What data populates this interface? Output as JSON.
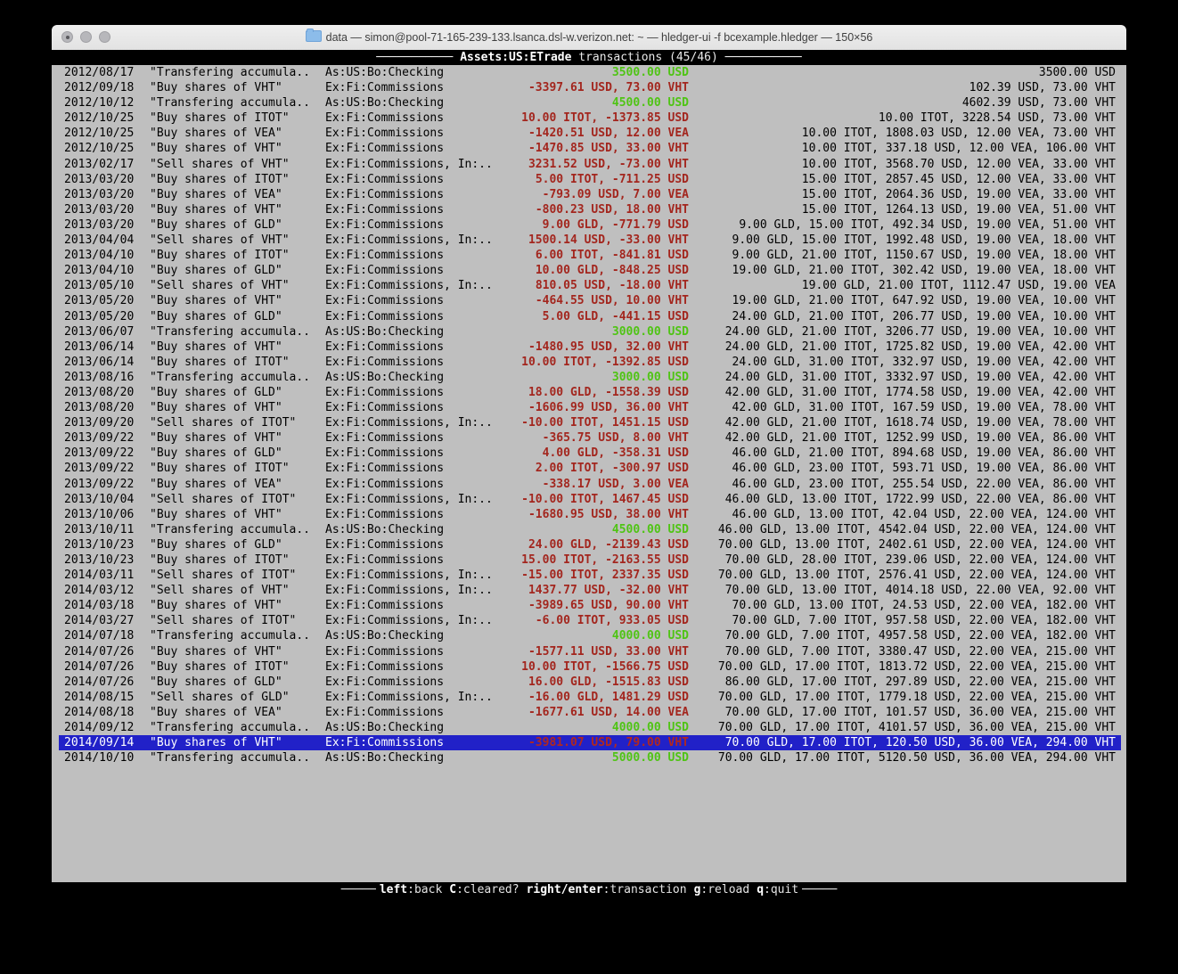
{
  "window": {
    "title": "data — simon@pool-71-165-239-133.lsanca.dsl-w.verizon.net: ~ — hledger-ui -f bcexample.hledger — 150×56"
  },
  "header": {
    "dashes_left": "───────────",
    "account": "Assets:US:ETrade",
    "label": " transactions (45/46) ",
    "dashes_right": "───────────"
  },
  "footer": {
    "dashes_left": "─────",
    "dashes_right": "─────",
    "keys": [
      {
        "key": "left",
        "desc": ":back"
      },
      {
        "key": "C",
        "desc": ":cleared?"
      },
      {
        "key": "right/enter",
        "desc": ":transaction"
      },
      {
        "key": "g",
        "desc": ":reload"
      },
      {
        "key": "q",
        "desc": ":quit"
      }
    ]
  },
  "colors": {
    "change_positive": "#4fc414",
    "change_negative": "#a3261e",
    "selection_bg": "#2121c8",
    "terminal_bg": "#bfbfbf",
    "bar_bg": "#000000"
  },
  "transactions": [
    {
      "date": "2012/08/17",
      "desc": "\"Transfering accumula..",
      "account": "As:US:Bo:Checking",
      "change": "3500.00 USD",
      "kind": "green",
      "balance": "3500.00 USD",
      "selected": false
    },
    {
      "date": "2012/09/18",
      "desc": "\"Buy shares of VHT\"",
      "account": "Ex:Fi:Commissions",
      "change": "-3397.61 USD, 73.00 VHT",
      "kind": "red",
      "balance": "102.39 USD, 73.00 VHT",
      "selected": false
    },
    {
      "date": "2012/10/12",
      "desc": "\"Transfering accumula..",
      "account": "As:US:Bo:Checking",
      "change": "4500.00 USD",
      "kind": "green",
      "balance": "4602.39 USD, 73.00 VHT",
      "selected": false
    },
    {
      "date": "2012/10/25",
      "desc": "\"Buy shares of ITOT\"",
      "account": "Ex:Fi:Commissions",
      "change": "10.00 ITOT, -1373.85 USD",
      "kind": "red",
      "balance": "10.00 ITOT, 3228.54 USD, 73.00 VHT",
      "selected": false
    },
    {
      "date": "2012/10/25",
      "desc": "\"Buy shares of VEA\"",
      "account": "Ex:Fi:Commissions",
      "change": "-1420.51 USD, 12.00 VEA",
      "kind": "red",
      "balance": "10.00 ITOT, 1808.03 USD, 12.00 VEA, 73.00 VHT",
      "selected": false
    },
    {
      "date": "2012/10/25",
      "desc": "\"Buy shares of VHT\"",
      "account": "Ex:Fi:Commissions",
      "change": "-1470.85 USD, 33.00 VHT",
      "kind": "red",
      "balance": "10.00 ITOT, 337.18 USD, 12.00 VEA, 106.00 VHT",
      "selected": false
    },
    {
      "date": "2013/02/17",
      "desc": "\"Sell shares of VHT\"",
      "account": "Ex:Fi:Commissions, In:..",
      "change": "3231.52 USD, -73.00 VHT",
      "kind": "red",
      "balance": "10.00 ITOT, 3568.70 USD, 12.00 VEA, 33.00 VHT",
      "selected": false
    },
    {
      "date": "2013/03/20",
      "desc": "\"Buy shares of ITOT\"",
      "account": "Ex:Fi:Commissions",
      "change": "5.00 ITOT, -711.25 USD",
      "kind": "red",
      "balance": "15.00 ITOT, 2857.45 USD, 12.00 VEA, 33.00 VHT",
      "selected": false
    },
    {
      "date": "2013/03/20",
      "desc": "\"Buy shares of VEA\"",
      "account": "Ex:Fi:Commissions",
      "change": "-793.09 USD, 7.00 VEA",
      "kind": "red",
      "balance": "15.00 ITOT, 2064.36 USD, 19.00 VEA, 33.00 VHT",
      "selected": false
    },
    {
      "date": "2013/03/20",
      "desc": "\"Buy shares of VHT\"",
      "account": "Ex:Fi:Commissions",
      "change": "-800.23 USD, 18.00 VHT",
      "kind": "red",
      "balance": "15.00 ITOT, 1264.13 USD, 19.00 VEA, 51.00 VHT",
      "selected": false
    },
    {
      "date": "2013/03/20",
      "desc": "\"Buy shares of GLD\"",
      "account": "Ex:Fi:Commissions",
      "change": "9.00 GLD, -771.79 USD",
      "kind": "red",
      "balance": "9.00 GLD, 15.00 ITOT, 492.34 USD, 19.00 VEA, 51.00 VHT",
      "selected": false
    },
    {
      "date": "2013/04/04",
      "desc": "\"Sell shares of VHT\"",
      "account": "Ex:Fi:Commissions, In:..",
      "change": "1500.14 USD, -33.00 VHT",
      "kind": "red",
      "balance": "9.00 GLD, 15.00 ITOT, 1992.48 USD, 19.00 VEA, 18.00 VHT",
      "selected": false
    },
    {
      "date": "2013/04/10",
      "desc": "\"Buy shares of ITOT\"",
      "account": "Ex:Fi:Commissions",
      "change": "6.00 ITOT, -841.81 USD",
      "kind": "red",
      "balance": "9.00 GLD, 21.00 ITOT, 1150.67 USD, 19.00 VEA, 18.00 VHT",
      "selected": false
    },
    {
      "date": "2013/04/10",
      "desc": "\"Buy shares of GLD\"",
      "account": "Ex:Fi:Commissions",
      "change": "10.00 GLD, -848.25 USD",
      "kind": "red",
      "balance": "19.00 GLD, 21.00 ITOT, 302.42 USD, 19.00 VEA, 18.00 VHT",
      "selected": false
    },
    {
      "date": "2013/05/10",
      "desc": "\"Sell shares of VHT\"",
      "account": "Ex:Fi:Commissions, In:..",
      "change": "810.05 USD, -18.00 VHT",
      "kind": "red",
      "balance": "19.00 GLD, 21.00 ITOT, 1112.47 USD, 19.00 VEA",
      "selected": false
    },
    {
      "date": "2013/05/20",
      "desc": "\"Buy shares of VHT\"",
      "account": "Ex:Fi:Commissions",
      "change": "-464.55 USD, 10.00 VHT",
      "kind": "red",
      "balance": "19.00 GLD, 21.00 ITOT, 647.92 USD, 19.00 VEA, 10.00 VHT",
      "selected": false
    },
    {
      "date": "2013/05/20",
      "desc": "\"Buy shares of GLD\"",
      "account": "Ex:Fi:Commissions",
      "change": "5.00 GLD, -441.15 USD",
      "kind": "red",
      "balance": "24.00 GLD, 21.00 ITOT, 206.77 USD, 19.00 VEA, 10.00 VHT",
      "selected": false
    },
    {
      "date": "2013/06/07",
      "desc": "\"Transfering accumula..",
      "account": "As:US:Bo:Checking",
      "change": "3000.00 USD",
      "kind": "green",
      "balance": "24.00 GLD, 21.00 ITOT, 3206.77 USD, 19.00 VEA, 10.00 VHT",
      "selected": false
    },
    {
      "date": "2013/06/14",
      "desc": "\"Buy shares of VHT\"",
      "account": "Ex:Fi:Commissions",
      "change": "-1480.95 USD, 32.00 VHT",
      "kind": "red",
      "balance": "24.00 GLD, 21.00 ITOT, 1725.82 USD, 19.00 VEA, 42.00 VHT",
      "selected": false
    },
    {
      "date": "2013/06/14",
      "desc": "\"Buy shares of ITOT\"",
      "account": "Ex:Fi:Commissions",
      "change": "10.00 ITOT, -1392.85 USD",
      "kind": "red",
      "balance": "24.00 GLD, 31.00 ITOT, 332.97 USD, 19.00 VEA, 42.00 VHT",
      "selected": false
    },
    {
      "date": "2013/08/16",
      "desc": "\"Transfering accumula..",
      "account": "As:US:Bo:Checking",
      "change": "3000.00 USD",
      "kind": "green",
      "balance": "24.00 GLD, 31.00 ITOT, 3332.97 USD, 19.00 VEA, 42.00 VHT",
      "selected": false
    },
    {
      "date": "2013/08/20",
      "desc": "\"Buy shares of GLD\"",
      "account": "Ex:Fi:Commissions",
      "change": "18.00 GLD, -1558.39 USD",
      "kind": "red",
      "balance": "42.00 GLD, 31.00 ITOT, 1774.58 USD, 19.00 VEA, 42.00 VHT",
      "selected": false
    },
    {
      "date": "2013/08/20",
      "desc": "\"Buy shares of VHT\"",
      "account": "Ex:Fi:Commissions",
      "change": "-1606.99 USD, 36.00 VHT",
      "kind": "red",
      "balance": "42.00 GLD, 31.00 ITOT, 167.59 USD, 19.00 VEA, 78.00 VHT",
      "selected": false
    },
    {
      "date": "2013/09/20",
      "desc": "\"Sell shares of ITOT\"",
      "account": "Ex:Fi:Commissions, In:..",
      "change": "-10.00 ITOT, 1451.15 USD",
      "kind": "red",
      "balance": "42.00 GLD, 21.00 ITOT, 1618.74 USD, 19.00 VEA, 78.00 VHT",
      "selected": false
    },
    {
      "date": "2013/09/22",
      "desc": "\"Buy shares of VHT\"",
      "account": "Ex:Fi:Commissions",
      "change": "-365.75 USD, 8.00 VHT",
      "kind": "red",
      "balance": "42.00 GLD, 21.00 ITOT, 1252.99 USD, 19.00 VEA, 86.00 VHT",
      "selected": false
    },
    {
      "date": "2013/09/22",
      "desc": "\"Buy shares of GLD\"",
      "account": "Ex:Fi:Commissions",
      "change": "4.00 GLD, -358.31 USD",
      "kind": "red",
      "balance": "46.00 GLD, 21.00 ITOT, 894.68 USD, 19.00 VEA, 86.00 VHT",
      "selected": false
    },
    {
      "date": "2013/09/22",
      "desc": "\"Buy shares of ITOT\"",
      "account": "Ex:Fi:Commissions",
      "change": "2.00 ITOT, -300.97 USD",
      "kind": "red",
      "balance": "46.00 GLD, 23.00 ITOT, 593.71 USD, 19.00 VEA, 86.00 VHT",
      "selected": false
    },
    {
      "date": "2013/09/22",
      "desc": "\"Buy shares of VEA\"",
      "account": "Ex:Fi:Commissions",
      "change": "-338.17 USD, 3.00 VEA",
      "kind": "red",
      "balance": "46.00 GLD, 23.00 ITOT, 255.54 USD, 22.00 VEA, 86.00 VHT",
      "selected": false
    },
    {
      "date": "2013/10/04",
      "desc": "\"Sell shares of ITOT\"",
      "account": "Ex:Fi:Commissions, In:..",
      "change": "-10.00 ITOT, 1467.45 USD",
      "kind": "red",
      "balance": "46.00 GLD, 13.00 ITOT, 1722.99 USD, 22.00 VEA, 86.00 VHT",
      "selected": false
    },
    {
      "date": "2013/10/06",
      "desc": "\"Buy shares of VHT\"",
      "account": "Ex:Fi:Commissions",
      "change": "-1680.95 USD, 38.00 VHT",
      "kind": "red",
      "balance": "46.00 GLD, 13.00 ITOT, 42.04 USD, 22.00 VEA, 124.00 VHT",
      "selected": false
    },
    {
      "date": "2013/10/11",
      "desc": "\"Transfering accumula..",
      "account": "As:US:Bo:Checking",
      "change": "4500.00 USD",
      "kind": "green",
      "balance": "46.00 GLD, 13.00 ITOT, 4542.04 USD, 22.00 VEA, 124.00 VHT",
      "selected": false
    },
    {
      "date": "2013/10/23",
      "desc": "\"Buy shares of GLD\"",
      "account": "Ex:Fi:Commissions",
      "change": "24.00 GLD, -2139.43 USD",
      "kind": "red",
      "balance": "70.00 GLD, 13.00 ITOT, 2402.61 USD, 22.00 VEA, 124.00 VHT",
      "selected": false
    },
    {
      "date": "2013/10/23",
      "desc": "\"Buy shares of ITOT\"",
      "account": "Ex:Fi:Commissions",
      "change": "15.00 ITOT, -2163.55 USD",
      "kind": "red",
      "balance": "70.00 GLD, 28.00 ITOT, 239.06 USD, 22.00 VEA, 124.00 VHT",
      "selected": false
    },
    {
      "date": "2014/03/11",
      "desc": "\"Sell shares of ITOT\"",
      "account": "Ex:Fi:Commissions, In:..",
      "change": "-15.00 ITOT, 2337.35 USD",
      "kind": "red",
      "balance": "70.00 GLD, 13.00 ITOT, 2576.41 USD, 22.00 VEA, 124.00 VHT",
      "selected": false
    },
    {
      "date": "2014/03/12",
      "desc": "\"Sell shares of VHT\"",
      "account": "Ex:Fi:Commissions, In:..",
      "change": "1437.77 USD, -32.00 VHT",
      "kind": "red",
      "balance": "70.00 GLD, 13.00 ITOT, 4014.18 USD, 22.00 VEA, 92.00 VHT",
      "selected": false
    },
    {
      "date": "2014/03/18",
      "desc": "\"Buy shares of VHT\"",
      "account": "Ex:Fi:Commissions",
      "change": "-3989.65 USD, 90.00 VHT",
      "kind": "red",
      "balance": "70.00 GLD, 13.00 ITOT, 24.53 USD, 22.00 VEA, 182.00 VHT",
      "selected": false
    },
    {
      "date": "2014/03/27",
      "desc": "\"Sell shares of ITOT\"",
      "account": "Ex:Fi:Commissions, In:..",
      "change": "-6.00 ITOT, 933.05 USD",
      "kind": "red",
      "balance": "70.00 GLD, 7.00 ITOT, 957.58 USD, 22.00 VEA, 182.00 VHT",
      "selected": false
    },
    {
      "date": "2014/07/18",
      "desc": "\"Transfering accumula..",
      "account": "As:US:Bo:Checking",
      "change": "4000.00 USD",
      "kind": "green",
      "balance": "70.00 GLD, 7.00 ITOT, 4957.58 USD, 22.00 VEA, 182.00 VHT",
      "selected": false
    },
    {
      "date": "2014/07/26",
      "desc": "\"Buy shares of VHT\"",
      "account": "Ex:Fi:Commissions",
      "change": "-1577.11 USD, 33.00 VHT",
      "kind": "red",
      "balance": "70.00 GLD, 7.00 ITOT, 3380.47 USD, 22.00 VEA, 215.00 VHT",
      "selected": false
    },
    {
      "date": "2014/07/26",
      "desc": "\"Buy shares of ITOT\"",
      "account": "Ex:Fi:Commissions",
      "change": "10.00 ITOT, -1566.75 USD",
      "kind": "red",
      "balance": "70.00 GLD, 17.00 ITOT, 1813.72 USD, 22.00 VEA, 215.00 VHT",
      "selected": false
    },
    {
      "date": "2014/07/26",
      "desc": "\"Buy shares of GLD\"",
      "account": "Ex:Fi:Commissions",
      "change": "16.00 GLD, -1515.83 USD",
      "kind": "red",
      "balance": "86.00 GLD, 17.00 ITOT, 297.89 USD, 22.00 VEA, 215.00 VHT",
      "selected": false
    },
    {
      "date": "2014/08/15",
      "desc": "\"Sell shares of GLD\"",
      "account": "Ex:Fi:Commissions, In:..",
      "change": "-16.00 GLD, 1481.29 USD",
      "kind": "red",
      "balance": "70.00 GLD, 17.00 ITOT, 1779.18 USD, 22.00 VEA, 215.00 VHT",
      "selected": false
    },
    {
      "date": "2014/08/18",
      "desc": "\"Buy shares of VEA\"",
      "account": "Ex:Fi:Commissions",
      "change": "-1677.61 USD, 14.00 VEA",
      "kind": "red",
      "balance": "70.00 GLD, 17.00 ITOT, 101.57 USD, 36.00 VEA, 215.00 VHT",
      "selected": false
    },
    {
      "date": "2014/09/12",
      "desc": "\"Transfering accumula..",
      "account": "As:US:Bo:Checking",
      "change": "4000.00 USD",
      "kind": "green",
      "balance": "70.00 GLD, 17.00 ITOT, 4101.57 USD, 36.00 VEA, 215.00 VHT",
      "selected": false
    },
    {
      "date": "2014/09/14",
      "desc": "\"Buy shares of VHT\"",
      "account": "Ex:Fi:Commissions",
      "change": "-3981.07 USD, 79.00 VHT",
      "kind": "red",
      "balance": "70.00 GLD, 17.00 ITOT, 120.50 USD, 36.00 VEA, 294.00 VHT",
      "selected": true
    },
    {
      "date": "2014/10/10",
      "desc": "\"Transfering accumula..",
      "account": "As:US:Bo:Checking",
      "change": "5000.00 USD",
      "kind": "green",
      "balance": "70.00 GLD, 17.00 ITOT, 5120.50 USD, 36.00 VEA, 294.00 VHT",
      "selected": false
    }
  ]
}
